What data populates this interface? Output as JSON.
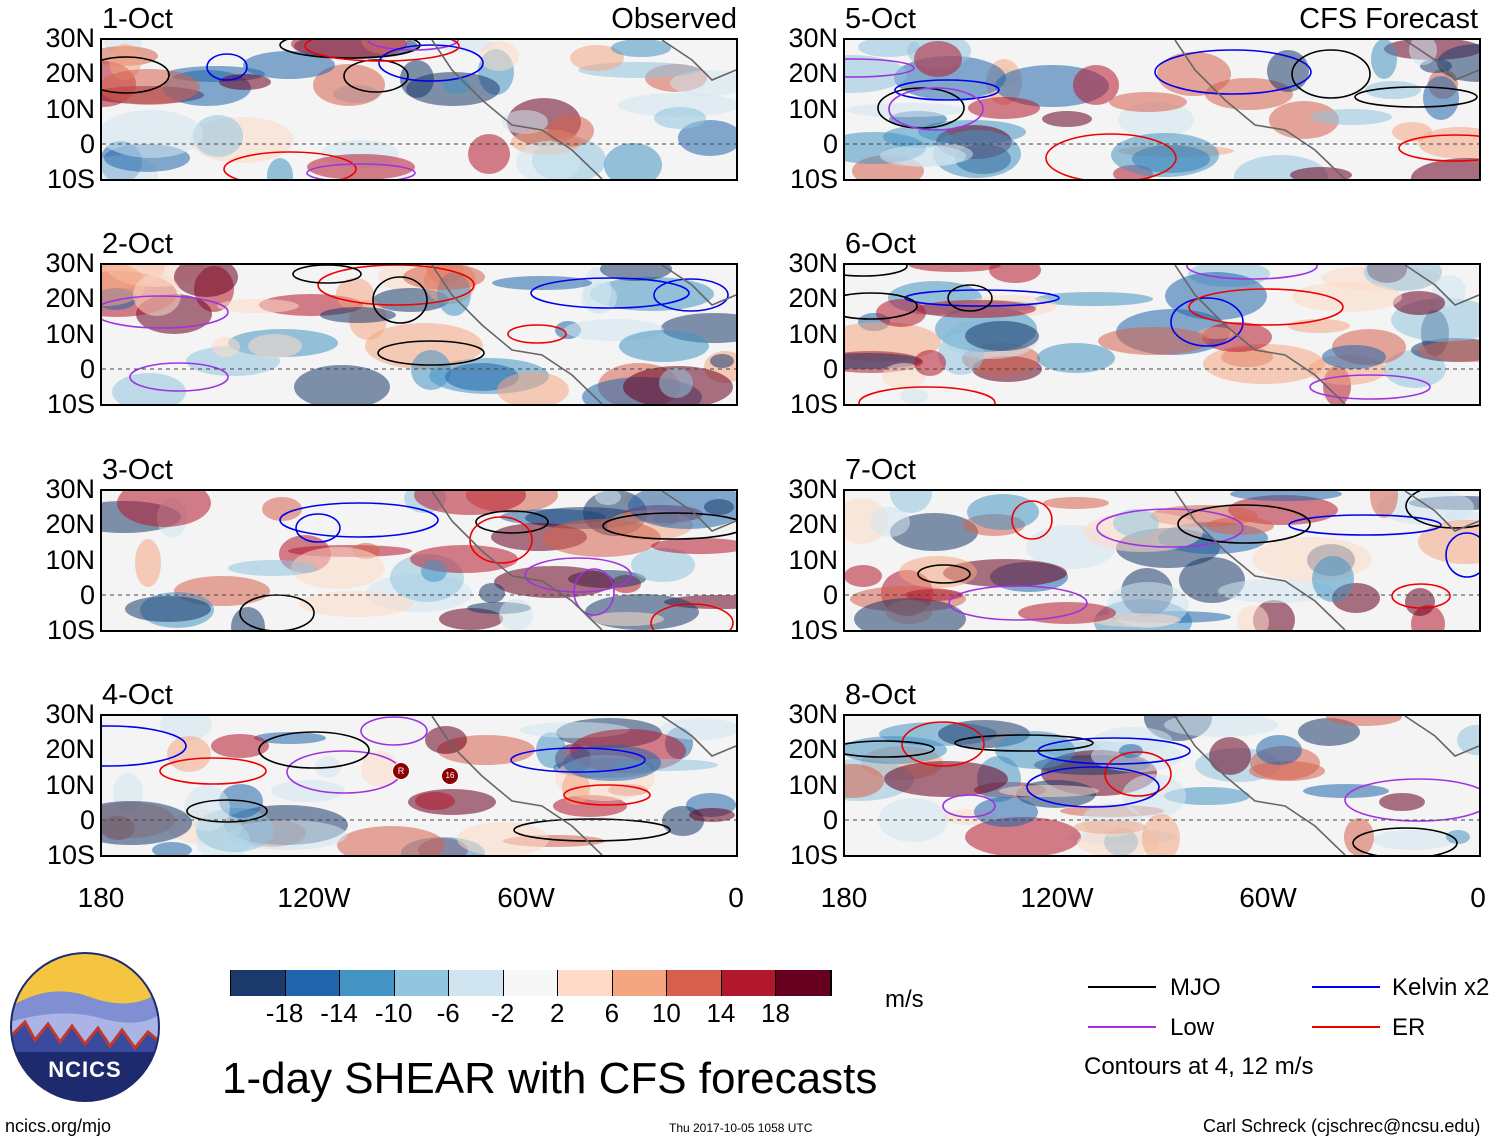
{
  "figure": {
    "title": "1-day SHEAR with CFS forecasts",
    "left_header": "Observed",
    "right_header": "CFS Forecast",
    "units": "m/s",
    "footer_left": "ncics.org/mjo",
    "footer_center": "Thu 2017-10-05 1058 UTC",
    "footer_right": "Carl Schreck (cjschrec@ncsu.edu)",
    "logo_text": "NCICS"
  },
  "panels": {
    "observed": [
      "1-Oct",
      "2-Oct",
      "3-Oct",
      "4-Oct"
    ],
    "forecast": [
      "5-Oct",
      "6-Oct",
      "7-Oct",
      "8-Oct"
    ]
  },
  "axes": {
    "lat_ticks": [
      "30N",
      "20N",
      "10N",
      "0",
      "10S"
    ],
    "lon_ticks": [
      "180",
      "120W",
      "60W",
      "0"
    ]
  },
  "colorbar": {
    "labels": [
      "-18",
      "-14",
      "-10",
      "-6",
      "-2",
      "2",
      "6",
      "10",
      "14",
      "18"
    ],
    "colors": [
      "#1b3a6b",
      "#2166ac",
      "#4393c3",
      "#92c5de",
      "#d1e5f0",
      "#f7f7f7",
      "#fddbc7",
      "#f4a582",
      "#d6604d",
      "#b2182b",
      "#67001f"
    ]
  },
  "legend": {
    "items": [
      {
        "label": "MJO",
        "color": "#000000"
      },
      {
        "label": "Kelvin x2",
        "color": "#0000ee"
      },
      {
        "label": "Low",
        "color": "#a033e0"
      },
      {
        "label": "ER",
        "color": "#ee0000"
      }
    ],
    "contour_note": "Contours at 4, 12 m/s"
  },
  "storm_markers": [
    {
      "panel": "4-Oct",
      "label": "R"
    },
    {
      "panel": "4-Oct",
      "label": "16"
    }
  ]
}
